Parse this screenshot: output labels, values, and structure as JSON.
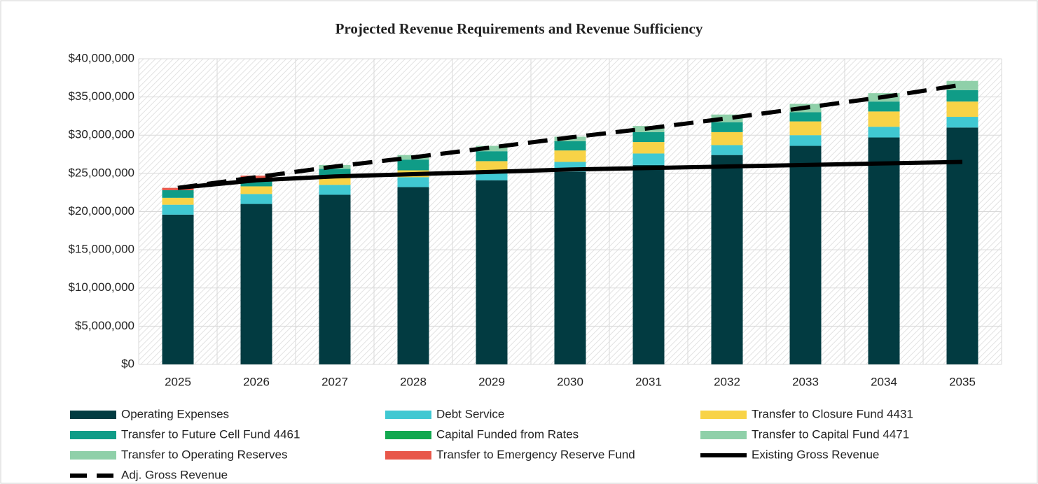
{
  "chart_data": {
    "type": "bar",
    "title": "Projected Revenue Requirements and Revenue Sufficiency",
    "categories": [
      "2025",
      "2026",
      "2027",
      "2028",
      "2029",
      "2030",
      "2031",
      "2032",
      "2033",
      "2034",
      "2035"
    ],
    "ylim": [
      0,
      40000000
    ],
    "yticks": [
      {
        "value": 0,
        "label": "$0"
      },
      {
        "value": 5000000,
        "label": "$5,000,000"
      },
      {
        "value": 10000000,
        "label": "$10,000,000"
      },
      {
        "value": 15000000,
        "label": "$15,000,000"
      },
      {
        "value": 20000000,
        "label": "$20,000,000"
      },
      {
        "value": 25000000,
        "label": "$25,000,000"
      },
      {
        "value": 30000000,
        "label": "$30,000,000"
      },
      {
        "value": 35000000,
        "label": "$35,000,000"
      },
      {
        "value": 40000000,
        "label": "$40,000,000"
      }
    ],
    "grid": true,
    "stacked": true,
    "legend": "bottom",
    "series": [
      {
        "name": "Operating Expenses",
        "type": "bar",
        "color": "#023b41",
        "values": [
          19600000,
          21000000,
          22200000,
          23200000,
          24100000,
          25200000,
          26100000,
          27400000,
          28600000,
          29700000,
          31000000
        ]
      },
      {
        "name": "Debt Service",
        "type": "bar",
        "color": "#40c8d2",
        "values": [
          1300000,
          1300000,
          1300000,
          1300000,
          1300000,
          1300000,
          1500000,
          1300000,
          1400000,
          1400000,
          1400000
        ]
      },
      {
        "name": "Transfer to Closure Fund 4431",
        "type": "bar",
        "color": "#f8d347",
        "values": [
          900000,
          1000000,
          1000000,
          900000,
          1200000,
          1500000,
          1500000,
          1700000,
          1800000,
          2000000,
          2000000
        ]
      },
      {
        "name": "Transfer to Future Cell Fund 4461",
        "type": "bar",
        "color": "#0f9c87",
        "values": [
          1000000,
          1000000,
          1100000,
          1400000,
          1300000,
          1200000,
          1300000,
          1300000,
          1200000,
          1300000,
          1500000
        ]
      },
      {
        "name": "Capital Funded from Rates",
        "type": "bar",
        "color": "#12a84f",
        "values": [
          0,
          0,
          0,
          0,
          0,
          0,
          0,
          0,
          0,
          0,
          0
        ]
      },
      {
        "name": "Transfer to Capital Fund 4471",
        "type": "bar",
        "color": "#8fd0a9",
        "values": [
          0,
          0,
          500000,
          600000,
          700000,
          600000,
          800000,
          1000000,
          1100000,
          1100000,
          1200000
        ]
      },
      {
        "name": "Transfer to Operating Reserves",
        "type": "bar",
        "color": "#8fd0a9",
        "values": [
          0,
          0,
          0,
          0,
          0,
          0,
          0,
          0,
          0,
          0,
          0
        ]
      },
      {
        "name": "Transfer to Emergency Reserve Fund",
        "type": "bar",
        "color": "#e8574a",
        "values": [
          300000,
          400000,
          0,
          0,
          0,
          0,
          0,
          0,
          0,
          0,
          0
        ]
      },
      {
        "name": "Existing Gross Revenue",
        "type": "line",
        "line_style": "solid",
        "color": "#000000",
        "values": [
          23100000,
          24100000,
          24600000,
          24900000,
          25200000,
          25500000,
          25700000,
          25900000,
          26100000,
          26300000,
          26500000
        ]
      },
      {
        "name": "Adj. Gross Revenue",
        "type": "line",
        "line_style": "dashed",
        "color": "#000000",
        "values": [
          23100000,
          24500000,
          25900000,
          27100000,
          28400000,
          29700000,
          30900000,
          32200000,
          33600000,
          35000000,
          36600000
        ]
      }
    ]
  }
}
